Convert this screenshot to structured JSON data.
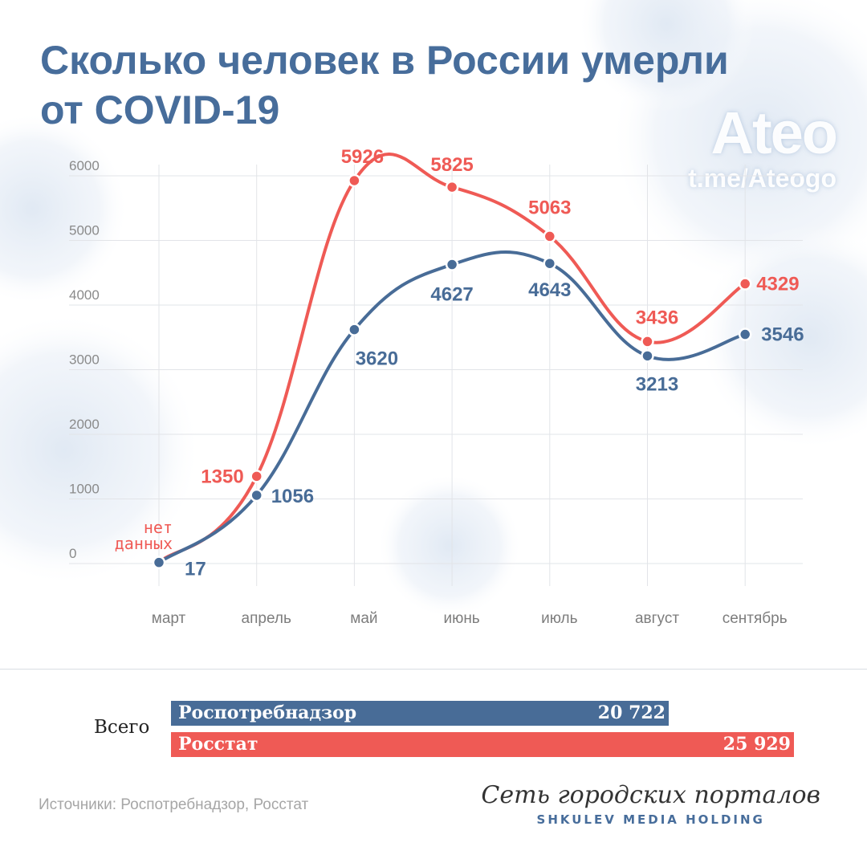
{
  "title": {
    "line1": "Сколько человек в России умерли",
    "line2": "от COVID-19"
  },
  "watermark": {
    "name": "Ateo",
    "link": "t.me/Ateogo"
  },
  "chart_data": {
    "type": "line",
    "categories": [
      "март",
      "апрель",
      "май",
      "июнь",
      "июль",
      "август",
      "сентябрь"
    ],
    "yticks": [
      0,
      1000,
      2000,
      3000,
      4000,
      5000,
      6000
    ],
    "ylim": [
      0,
      6000
    ],
    "grid": true,
    "series": [
      {
        "key": "rosstat",
        "color": "#ef5a55",
        "values": [
          null,
          1350,
          5926,
          5825,
          5063,
          3436,
          4329
        ],
        "labels": [
          "",
          "1350",
          "5926",
          "5825",
          "5063",
          "3436",
          "4329"
        ]
      },
      {
        "key": "rospotreb",
        "color": "#486c97",
        "values": [
          17,
          1056,
          3620,
          4627,
          4643,
          3213,
          3546
        ],
        "labels": [
          "17",
          "1056",
          "3620",
          "4627",
          "4643",
          "3213",
          "3546"
        ]
      }
    ],
    "annotation": "нет\nданных"
  },
  "totals": {
    "label": "Всего",
    "bars": [
      {
        "name": "Роспотребнадзор",
        "value_text": "20 722",
        "value": 20722,
        "color": "#486c97"
      },
      {
        "name": "Росстат",
        "value_text": "25 929",
        "value": 25929,
        "color": "#ef5a55"
      }
    ]
  },
  "footer": {
    "source": "Источники: Роспотребнадзор, Росстат",
    "brand_script": "Сеть городских порталов",
    "brand_sub": "SHKULEV MEDIA HOLDING"
  }
}
